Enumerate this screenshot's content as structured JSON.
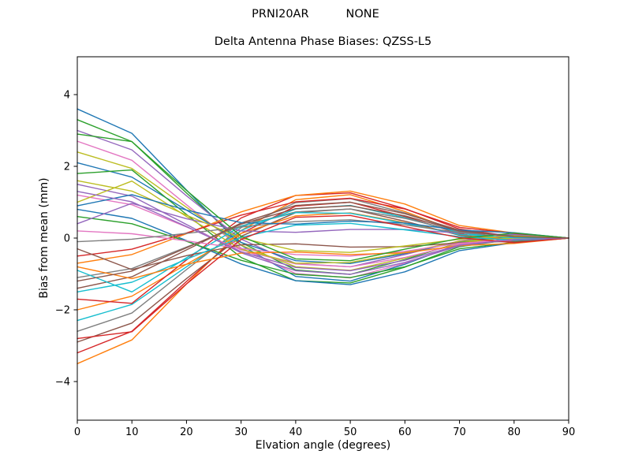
{
  "figure": {
    "background": "#ffffff",
    "axis_color": "#000000"
  },
  "chart_data": {
    "type": "line",
    "suptitle_left": "PRNI20AR",
    "suptitle_right": "NONE",
    "title": "Delta Antenna Phase Biases: QZSS-L5",
    "xlabel": "Elvation angle (degrees)",
    "ylabel": "Bias from mean (mm)",
    "grid": false,
    "legend": "none",
    "xlim": [
      0,
      90
    ],
    "ylim": [
      -5.05,
      5.05
    ],
    "xtick_values": [
      0,
      10,
      20,
      30,
      40,
      50,
      60,
      70,
      80,
      90
    ],
    "xtick_labels": [
      "0",
      "10",
      "20",
      "30",
      "40",
      "50",
      "60",
      "70",
      "80",
      "90"
    ],
    "ytick_values": [
      -4,
      -2,
      0,
      2,
      4
    ],
    "ytick_labels": [
      "−4",
      "−2",
      "0",
      "2",
      "4"
    ],
    "x": [
      0,
      10,
      20,
      30,
      40,
      50,
      60,
      70,
      80,
      90
    ],
    "series": [
      {
        "color": "#1f77b4",
        "values": [
          3.6,
          2.92,
          1.34,
          -0.2,
          -1.07,
          -1.2,
          -0.73,
          -0.16,
          0.1,
          0
        ]
      },
      {
        "color": "#ff7f0e",
        "values": [
          -3.5,
          -2.84,
          -1.28,
          0.21,
          1.07,
          1.21,
          0.74,
          0.17,
          -0.09,
          0
        ]
      },
      {
        "color": "#2ca02c",
        "values": [
          3.3,
          2.69,
          1.26,
          -0.12,
          -0.89,
          -1.01,
          -0.6,
          -0.12,
          0.11,
          0
        ]
      },
      {
        "color": "#d62728",
        "values": [
          -3.2,
          -2.6,
          -1.21,
          0.13,
          0.89,
          1.0,
          0.6,
          0.12,
          -0.1,
          0
        ]
      },
      {
        "color": "#9467bd",
        "values": [
          3.0,
          2.46,
          1.18,
          -0.03,
          -0.71,
          -0.8,
          -0.46,
          -0.08,
          0.11,
          0
        ]
      },
      {
        "color": "#8c564b",
        "values": [
          -2.9,
          -2.37,
          -1.13,
          0.05,
          0.71,
          0.81,
          0.47,
          0.08,
          -0.1,
          0
        ]
      },
      {
        "color": "#e377c2",
        "values": [
          2.7,
          2.17,
          0.93,
          -0.28,
          -0.99,
          -1.11,
          -0.7,
          -0.18,
          0.04,
          0
        ]
      },
      {
        "color": "#7f7f7f",
        "values": [
          -2.6,
          -2.09,
          -0.88,
          0.29,
          0.99,
          1.1,
          0.7,
          0.19,
          -0.04,
          0
        ]
      },
      {
        "color": "#bcbd22",
        "values": [
          2.4,
          1.94,
          0.86,
          -0.2,
          -0.8,
          -0.9,
          -0.56,
          -0.14,
          0.05,
          0
        ]
      },
      {
        "color": "#17becf",
        "values": [
          -2.3,
          -1.85,
          -0.8,
          0.21,
          0.81,
          0.91,
          0.57,
          0.15,
          -0.04,
          0
        ]
      },
      {
        "color": "#1f77b4",
        "values": [
          2.1,
          1.7,
          0.78,
          -0.12,
          -0.63,
          -0.71,
          -0.43,
          -0.1,
          0.06,
          0
        ]
      },
      {
        "color": "#ff7f0e",
        "values": [
          -2.0,
          -1.62,
          -0.73,
          0.13,
          0.62,
          0.7,
          0.43,
          0.1,
          -0.05,
          0
        ]
      },
      {
        "color": "#2ca02c",
        "values": [
          1.8,
          1.9,
          0.66,
          -0.54,
          -1.19,
          -1.25,
          -0.81,
          -0.24,
          -0.03,
          0
        ]
      },
      {
        "color": "#d62728",
        "values": [
          -1.7,
          -1.82,
          -0.61,
          0.56,
          1.19,
          1.26,
          0.82,
          0.25,
          0.04,
          0
        ]
      },
      {
        "color": "#9467bd",
        "values": [
          1.5,
          1.17,
          0.38,
          -0.41,
          -0.91,
          -1.01,
          -0.68,
          -0.22,
          -0.03,
          0
        ]
      },
      {
        "color": "#8c564b",
        "values": [
          -1.4,
          -1.08,
          -0.33,
          0.42,
          0.91,
          1.0,
          0.68,
          0.22,
          0.04,
          0
        ]
      },
      {
        "color": "#e377c2",
        "values": [
          1.2,
          0.93,
          0.31,
          -0.33,
          -0.72,
          -0.8,
          -0.54,
          -0.17,
          -0.03,
          0
        ]
      },
      {
        "color": "#7f7f7f",
        "values": [
          -1.1,
          -0.85,
          -0.25,
          0.34,
          0.73,
          0.81,
          0.55,
          0.18,
          0.04,
          0
        ]
      },
      {
        "color": "#bcbd22",
        "values": [
          1.0,
          1.59,
          0.6,
          -0.31,
          -0.7,
          -0.68,
          -0.4,
          -0.09,
          0.0,
          0
        ]
      },
      {
        "color": "#17becf",
        "values": [
          -0.9,
          -1.5,
          -0.55,
          0.33,
          0.71,
          0.69,
          0.41,
          0.1,
          0.01,
          0
        ]
      },
      {
        "color": "#1f77b4",
        "values": [
          0.8,
          0.55,
          -0.07,
          -0.72,
          -1.19,
          -1.3,
          -0.94,
          -0.35,
          -0.13,
          0
        ]
      },
      {
        "color": "#ff7f0e",
        "values": [
          -0.7,
          -0.46,
          0.12,
          0.73,
          1.19,
          1.31,
          0.95,
          0.35,
          0.14,
          0
        ]
      },
      {
        "color": "#2ca02c",
        "values": [
          0.6,
          0.4,
          -0.09,
          -0.62,
          -1.01,
          -1.1,
          -0.8,
          -0.3,
          -0.12,
          0
        ]
      },
      {
        "color": "#d62728",
        "values": [
          -0.5,
          -0.31,
          0.14,
          0.64,
          1.01,
          1.11,
          0.81,
          0.3,
          0.13,
          0
        ]
      },
      {
        "color": "#9467bd",
        "values": [
          0.4,
          0.97,
          0.54,
          0.2,
          0.16,
          0.24,
          0.24,
          0.14,
          0.09,
          0
        ]
      },
      {
        "color": "#8c564b",
        "values": [
          -0.3,
          -0.88,
          -0.49,
          -0.19,
          -0.16,
          -0.25,
          -0.24,
          -0.13,
          -0.09,
          0
        ]
      },
      {
        "color": "#e377c2",
        "values": [
          0.2,
          0.12,
          -0.08,
          -0.29,
          -0.46,
          -0.5,
          -0.37,
          -0.14,
          -0.06,
          0
        ]
      },
      {
        "color": "#7f7f7f",
        "values": [
          -0.1,
          -0.03,
          0.13,
          0.31,
          0.46,
          0.51,
          0.37,
          0.15,
          0.07,
          0
        ]
      },
      {
        "color": "#bcbd22",
        "values": [
          1.6,
          1.31,
          0.64,
          0.0,
          -0.35,
          -0.4,
          -0.22,
          -0.03,
          0.06,
          0
        ]
      },
      {
        "color": "#17becf",
        "values": [
          -1.5,
          -1.23,
          -0.59,
          0.02,
          0.36,
          0.41,
          0.23,
          0.04,
          -0.06,
          0
        ]
      },
      {
        "color": "#1f77b4",
        "values": [
          0.9,
          1.21,
          0.78,
          0.43,
          0.39,
          0.47,
          0.42,
          0.22,
          0.15,
          0
        ]
      },
      {
        "color": "#ff7f0e",
        "values": [
          -0.8,
          -1.13,
          -0.73,
          -0.42,
          -0.39,
          -0.46,
          -0.41,
          -0.21,
          -0.15,
          0
        ]
      },
      {
        "color": "#2ca02c",
        "values": [
          2.9,
          2.69,
          1.33,
          0.05,
          -0.58,
          -0.63,
          -0.31,
          -0.01,
          0.14,
          0
        ]
      },
      {
        "color": "#d62728",
        "values": [
          -2.8,
          -2.61,
          -1.28,
          -0.04,
          0.58,
          0.63,
          0.32,
          0.01,
          -0.13,
          0
        ]
      },
      {
        "color": "#9467bd",
        "values": [
          1.3,
          1.01,
          0.32,
          -0.38,
          -0.82,
          -0.91,
          -0.62,
          -0.2,
          -0.04,
          0
        ]
      },
      {
        "color": "#8c564b",
        "values": [
          -1.2,
          -0.92,
          -0.27,
          0.39,
          0.82,
          0.9,
          0.62,
          0.2,
          0.04,
          0
        ]
      }
    ]
  }
}
